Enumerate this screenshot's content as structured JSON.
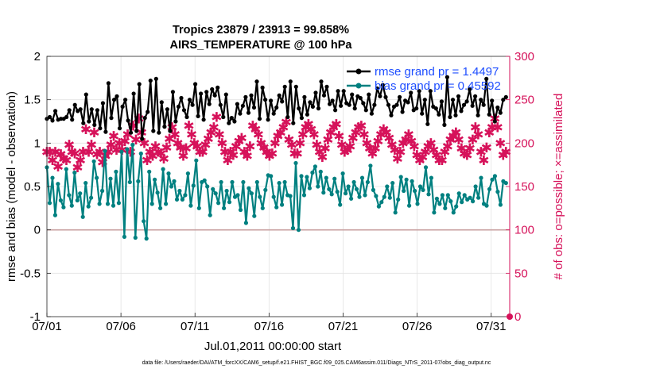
{
  "chart_data": {
    "type": "line",
    "title": "Tropics 23879 / 23913 = 99.858%",
    "subtitle": "AIRS_TEMPERATURE @ 100 hPa",
    "xlabel": "Jul.01,2011 00:00:00 start",
    "ylabel": "rmse and bias (model - observation)",
    "y2label": "# of obs: o=possible; ×=assimilated",
    "footnote": "data file: /Users/raeder/DAI/ATM_forcXX/CAM6_setup/f.e21.FHIST_BGC.f09_025.CAM6assim.011/Diags_NTrS_2011-07/obs_diag_output.nc",
    "xlim": [
      0,
      31.25
    ],
    "ylim": [
      -1,
      2
    ],
    "y2lim": [
      0,
      300
    ],
    "xticks": [
      0,
      5,
      10,
      15,
      20,
      25,
      30
    ],
    "xtick_labels": [
      "07/01",
      "07/06",
      "07/11",
      "07/16",
      "07/21",
      "07/26",
      "07/31"
    ],
    "yticks": [
      -1,
      -0.5,
      0,
      0.5,
      1,
      1.5,
      2
    ],
    "ytick_labels": [
      "-1",
      "-0.5",
      "0",
      "0.5",
      "1",
      "1.5",
      "2"
    ],
    "y2ticks": [
      0,
      50,
      100,
      150,
      200,
      250,
      300
    ],
    "y2tick_labels": [
      "0",
      "50",
      "100",
      "150",
      "200",
      "250",
      "300"
    ],
    "grid": true,
    "legend_position": "top-right",
    "colors": {
      "rmse": "#000000",
      "bias": "#008080",
      "obs": "#d6125a",
      "zero": "#c8a0a0",
      "grid": "#e3e3e3",
      "legend_text": "#1f4fff"
    },
    "series": [
      {
        "name": "rmse grand pr = 1.4497",
        "values": [
          1.28,
          1.3,
          1.26,
          1.37,
          1.27,
          1.28,
          1.28,
          1.3,
          1.38,
          1.27,
          1.44,
          1.37,
          1.39,
          1.23,
          1.56,
          1.25,
          1.39,
          1.21,
          1.38,
          1.17,
          1.46,
          1.13,
          1.69,
          1.29,
          1.5,
          1.54,
          1.17,
          1.42,
          1.5,
          1.26,
          1.12,
          1.57,
          1.14,
          1.68,
          1.05,
          1.29,
          1.36,
          1.72,
          1.14,
          1.74,
          1.12,
          1.47,
          1.19,
          1.39,
          1.14,
          1.59,
          1.25,
          1.42,
          1.52,
          1.38,
          1.3,
          1.5,
          1.44,
          1.68,
          1.31,
          1.57,
          1.27,
          1.59,
          1.45,
          1.62,
          1.55,
          1.64,
          1.44,
          1.3,
          1.56,
          1.23,
          1.29,
          1.25,
          1.45,
          1.34,
          1.43,
          1.53,
          1.35,
          1.55,
          1.41,
          1.71,
          1.28,
          1.64,
          1.5,
          1.27,
          1.49,
          1.34,
          1.41,
          1.55,
          1.48,
          1.65,
          1.3,
          1.71,
          1.23,
          1.65,
          1.4,
          1.29,
          1.53,
          1.33,
          1.47,
          1.42,
          1.58,
          1.4,
          1.71,
          1.55,
          1.65,
          1.45,
          1.49,
          1.38,
          1.6,
          1.43,
          1.6,
          1.46,
          1.44,
          1.56,
          1.4,
          1.54,
          1.52,
          1.46,
          1.38,
          1.56,
          1.34,
          1.44,
          1.63,
          1.54,
          1.67,
          1.53,
          1.44,
          1.32,
          1.42,
          1.44,
          1.53,
          1.36,
          1.49,
          1.47,
          1.58,
          1.38,
          1.4,
          1.6,
          1.34,
          1.5,
          1.22,
          1.6,
          1.42,
          1.4,
          1.33,
          1.48,
          1.21,
          1.76,
          1.3,
          1.5,
          1.32,
          1.54,
          1.37,
          1.44,
          1.48,
          1.62,
          1.43,
          1.54,
          1.32,
          1.5,
          1.44,
          1.74,
          1.33,
          1.49,
          1.25,
          1.41,
          1.35,
          1.5,
          1.53
        ],
        "color": "#000000",
        "marker": "dot"
      },
      {
        "name": "bias grand pr = 0.45592",
        "values": [
          0.72,
          0.31,
          0.6,
          0.17,
          0.53,
          0.34,
          0.26,
          0.7,
          0.4,
          0.28,
          0.66,
          0.34,
          0.42,
          0.15,
          0.54,
          0.27,
          0.37,
          0.79,
          0.6,
          0.3,
          0.45,
          0.91,
          0.3,
          0.59,
          0.28,
          0.67,
          0.31,
          0.9,
          -0.08,
          0.93,
          0.55,
          0.98,
          -0.09,
          0.56,
          0.88,
          0.1,
          -0.1,
          0.67,
          0.3,
          0.58,
          0.43,
          0.25,
          0.7,
          0.3,
          0.65,
          0.5,
          0.56,
          0.35,
          0.45,
          0.35,
          0.4,
          0.65,
          0.28,
          0.51,
          0.8,
          0.25,
          0.55,
          0.57,
          0.5,
          0.17,
          0.47,
          0.42,
          0.31,
          0.55,
          0.25,
          0.45,
          0.32,
          0.55,
          0.38,
          0.4,
          0.23,
          0.55,
          0.08,
          0.48,
          0.42,
          0.16,
          0.55,
          0.38,
          0.25,
          0.46,
          0.63,
          0.62,
          0.38,
          0.26,
          0.54,
          0.29,
          0.55,
          0.4,
          0.39,
          0.02,
          0.77,
          0.0,
          0.62,
          0.4,
          0.61,
          0.48,
          0.66,
          0.73,
          0.5,
          0.67,
          0.43,
          0.6,
          0.47,
          0.41,
          0.59,
          0.44,
          0.29,
          0.65,
          0.42,
          0.5,
          0.36,
          0.55,
          0.47,
          0.38,
          0.6,
          0.4,
          0.55,
          0.74,
          0.46,
          0.39,
          0.27,
          0.32,
          0.38,
          0.5,
          0.37,
          0.54,
          0.2,
          0.35,
          0.61,
          0.45,
          0.58,
          0.28,
          0.56,
          0.45,
          0.3,
          0.5,
          0.46,
          0.72,
          0.41,
          0.6,
          0.2,
          0.36,
          0.3,
          0.4,
          0.25,
          0.4,
          0.33,
          0.2,
          0.27,
          0.42,
          0.32,
          0.4,
          0.35,
          0.37,
          0.33,
          0.5,
          0.37,
          0.6,
          0.3,
          0.28,
          0.47,
          0.58,
          0.62,
          0.44,
          0.29,
          0.56,
          0.54
        ],
        "color": "#008080",
        "marker": "dot"
      },
      {
        "name": "# of obs (possible / assimilated)",
        "axis": "right",
        "values": [
          190,
          190,
          180,
          190,
          173,
          187,
          182,
          180,
          198,
          190,
          188,
          172,
          180,
          190,
          216,
          190,
          198,
          212,
          187,
          190,
          178,
          185,
          190,
          198,
          208,
          192,
          200,
          192,
          202,
          210,
          190,
          220,
          204,
          228,
          212,
          200,
          180,
          190,
          185,
          196,
          190,
          188,
          182,
          195,
          205,
          218,
          210,
          200,
          195,
          185,
          194,
          220,
          210,
          200,
          196,
          190,
          190,
          198,
          205,
          212,
          218,
          230,
          210,
          200,
          190,
          180,
          190,
          186,
          196,
          202,
          206,
          190,
          185,
          196,
          220,
          216,
          210,
          200,
          195,
          190,
          185,
          188,
          200,
          208,
          212,
          218,
          224,
          204,
          198,
          188,
          188,
          200,
          210,
          218,
          222,
          216,
          210,
          198,
          190,
          184,
          194,
          204,
          212,
          218,
          222,
          208,
          198,
          190,
          192,
          196,
          206,
          212,
          218,
          220,
          210,
          200,
          194,
          188,
          194,
          202,
          210,
          216,
          212,
          206,
          198,
          192,
          182,
          190,
          200,
          204,
          210,
          202,
          196,
          186,
          180,
          184,
          190,
          196,
          200,
          192,
          186,
          180,
          180,
          190,
          196,
          204,
          208,
          212,
          204,
          194,
          188,
          186,
          194,
          204,
          218,
          210,
          190,
          180,
          195,
          212,
          218,
          228,
          218,
          200,
          186,
          190
        ],
        "color": "#d6125a",
        "marker": "asterisk"
      }
    ]
  }
}
